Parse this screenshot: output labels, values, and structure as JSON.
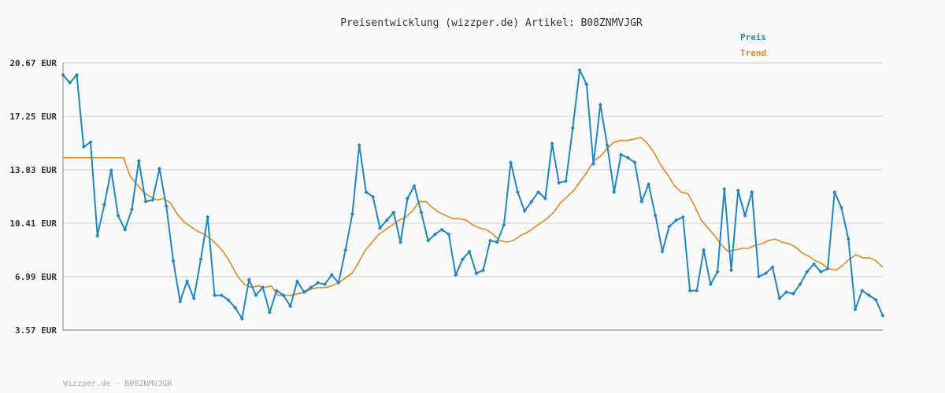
{
  "chart_data": {
    "type": "line",
    "title": "Preisentwicklung (wizzper.de) Artikel: B08ZNMVJGR",
    "footer": "Wizzper.de - B08ZNMVJGR",
    "y_ticks": [
      "20.67 EUR",
      "17.25 EUR",
      "13.83 EUR",
      "10.41 EUR",
      "6.99 EUR",
      "3.57 EUR"
    ],
    "y_tick_values": [
      20.67,
      17.25,
      13.83,
      10.41,
      6.99,
      3.57
    ],
    "ylim": [
      3.57,
      20.67
    ],
    "grid": true,
    "legend_position": "top-right",
    "colors": {
      "preis": "#1f86c3",
      "trend": "#e0891e",
      "grid": "#dddddd",
      "axis": "#888888"
    },
    "series": [
      {
        "name": "Preis",
        "values": [
          19.9,
          19.4,
          19.9,
          15.3,
          15.6,
          9.6,
          11.6,
          13.8,
          10.9,
          10.0,
          11.3,
          14.4,
          11.8,
          11.9,
          13.9,
          11.5,
          8.0,
          5.4,
          6.7,
          5.6,
          8.1,
          10.8,
          5.8,
          5.8,
          5.5,
          5.0,
          4.3,
          6.8,
          5.8,
          6.3,
          4.7,
          6.1,
          5.8,
          5.1,
          6.7,
          6.0,
          6.3,
          6.6,
          6.5,
          7.1,
          6.6,
          8.7,
          11.0,
          15.4,
          12.4,
          12.1,
          10.1,
          10.6,
          11.1,
          9.2,
          12.0,
          12.8,
          11.1,
          9.3,
          9.7,
          10.0,
          9.7,
          7.1,
          8.1,
          8.6,
          7.2,
          7.4,
          9.3,
          9.2,
          10.3,
          14.3,
          12.4,
          11.2,
          11.8,
          12.4,
          12.0,
          15.5,
          13.0,
          13.1,
          16.5,
          20.2,
          19.3,
          14.2,
          18.0,
          15.4,
          12.4,
          14.8,
          14.6,
          14.3,
          11.8,
          12.9,
          10.9,
          8.6,
          10.2,
          10.6,
          10.8,
          6.1,
          6.1,
          8.7,
          6.5,
          7.3,
          12.6,
          7.4,
          12.5,
          10.9,
          12.4,
          7.0,
          7.2,
          7.6,
          5.6,
          6.0,
          5.9,
          6.5,
          7.3,
          7.8,
          7.3,
          7.5,
          12.4,
          11.4,
          9.4,
          4.9,
          6.1,
          5.8,
          5.5,
          4.5
        ]
      },
      {
        "name": "Trend",
        "values": [
          14.6,
          14.6,
          14.6,
          14.6,
          14.6,
          14.6,
          14.6,
          14.6,
          14.6,
          14.6,
          13.4,
          12.9,
          12.4,
          12.1,
          11.9,
          12.0,
          11.7,
          11.0,
          10.5,
          10.2,
          9.9,
          9.7,
          9.4,
          9.0,
          8.5,
          7.8,
          7.0,
          6.5,
          6.3,
          6.4,
          6.3,
          6.4,
          5.8,
          5.8,
          5.8,
          5.9,
          6.0,
          6.2,
          6.3,
          6.3,
          6.4,
          6.6,
          6.9,
          7.2,
          7.9,
          8.7,
          9.2,
          9.7,
          10.0,
          10.3,
          10.6,
          10.8,
          11.2,
          11.8,
          11.8,
          11.4,
          11.1,
          10.9,
          10.7,
          10.7,
          10.6,
          10.3,
          10.1,
          10.0,
          9.7,
          9.3,
          9.2,
          9.3,
          9.6,
          9.8,
          10.1,
          10.4,
          10.7,
          11.1,
          11.7,
          12.1,
          12.5,
          13.1,
          13.7,
          14.4,
          14.7,
          15.2,
          15.6,
          15.7,
          15.7,
          15.8,
          15.9,
          15.5,
          14.9,
          14.1,
          13.5,
          12.8,
          12.4,
          12.3,
          11.5,
          10.6,
          10.1,
          9.6,
          9.0,
          8.6,
          8.7,
          8.8,
          8.8,
          9.0,
          9.1,
          9.3,
          9.4,
          9.2,
          9.1,
          8.9,
          8.5,
          8.3,
          8.0,
          7.8,
          7.5,
          7.4,
          7.7,
          8.1,
          8.4,
          8.2,
          8.2,
          8.0,
          7.6
        ]
      }
    ]
  }
}
